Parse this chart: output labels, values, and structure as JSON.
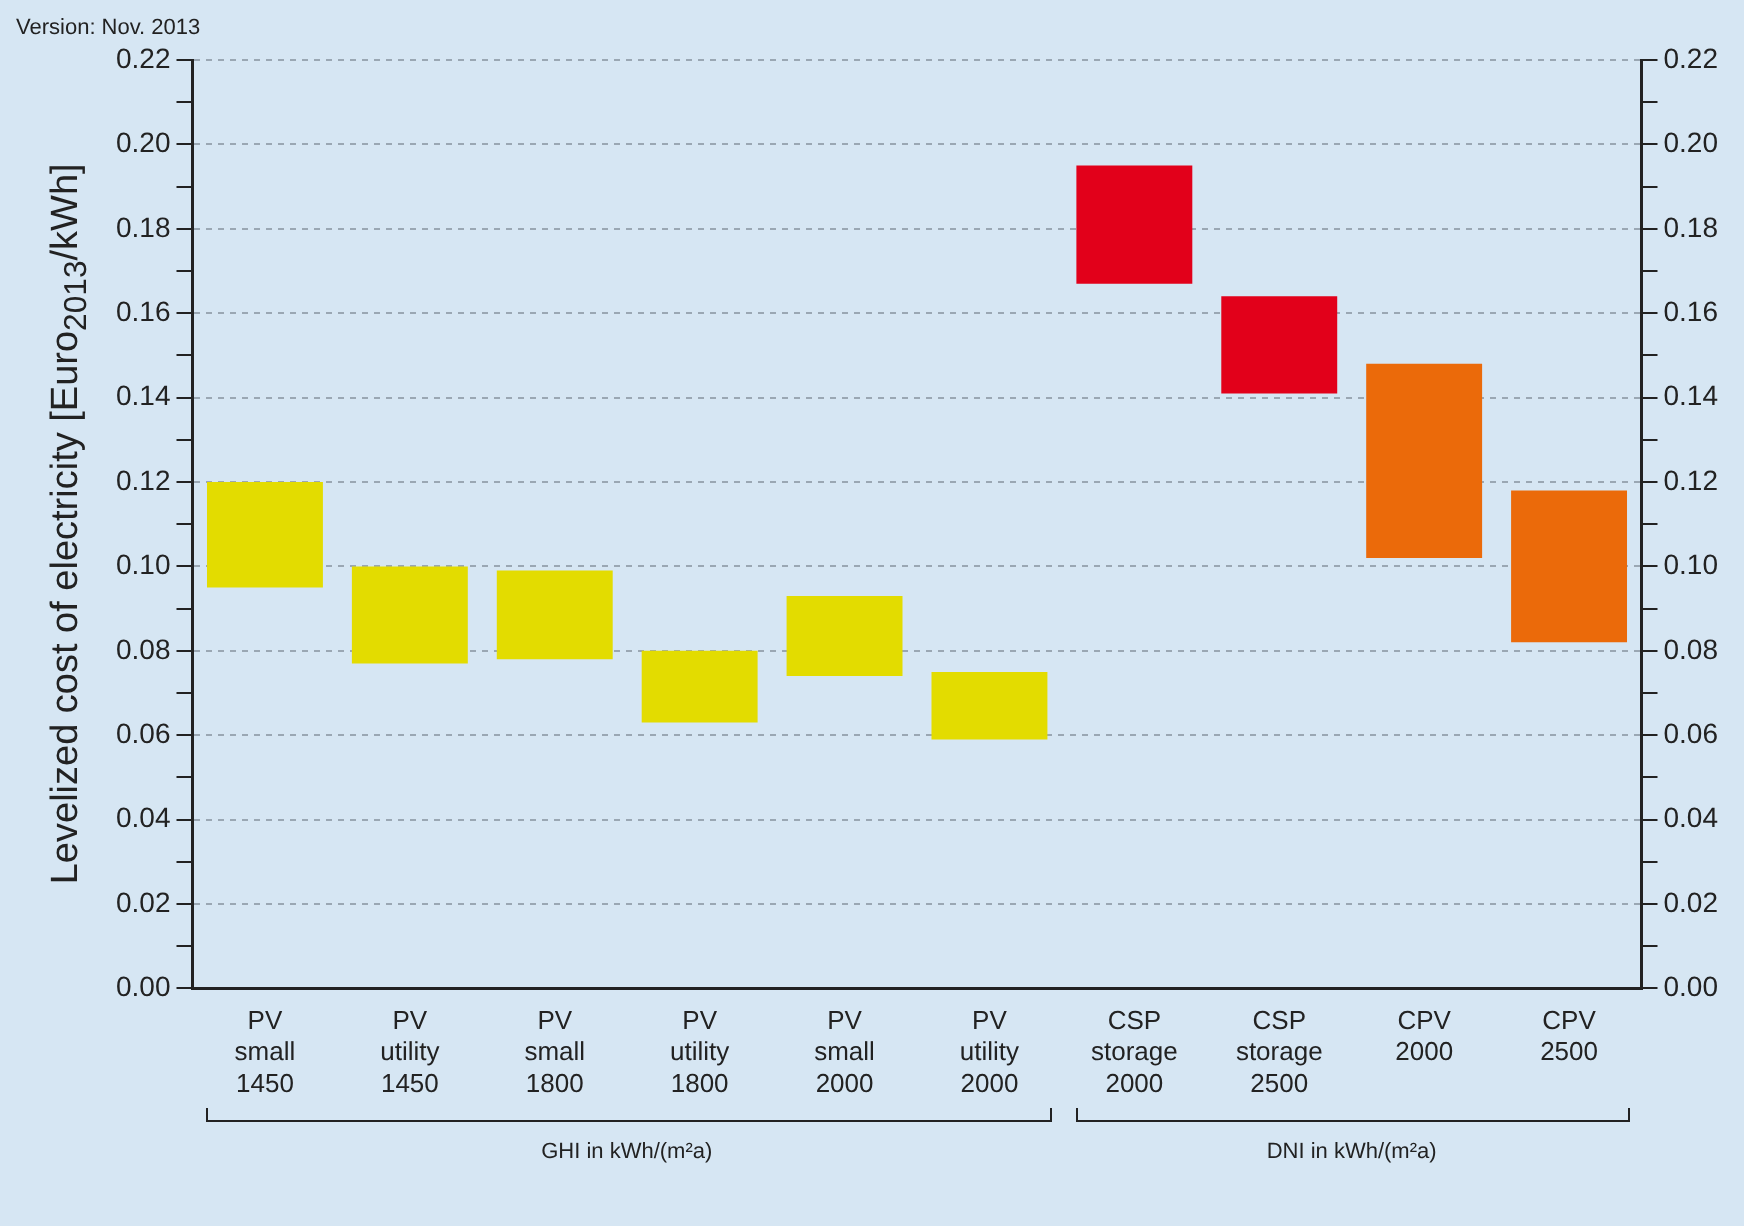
{
  "chart_data": {
    "type": "bar",
    "ylabel": "Levelized cost of electricity [Euro$_{2013}$/kWh]",
    "categories": [
      "PV small 1450",
      "PV utility 1450",
      "PV small 1800",
      "PV utility 1800",
      "PV small 2000",
      "PV utility 2000",
      "CSP storage 2000",
      "CSP storage 2500",
      "CPV 2000",
      "CPV 2500"
    ],
    "base": [
      0.095,
      0.077,
      0.078,
      0.063,
      0.074,
      0.059,
      0.167,
      0.141,
      0.102,
      0.082
    ],
    "values": [
      0.025,
      0.023,
      0.021,
      0.017,
      0.019,
      0.016,
      0.028,
      0.023,
      0.046,
      0.036
    ],
    "colors": [
      "#e3dc00",
      "#e3dc00",
      "#e3dc00",
      "#e3dc00",
      "#e3dc00",
      "#e3dc00",
      "#e2001a",
      "#e2001a",
      "#eb6a0a",
      "#eb6a0a"
    ],
    "ylim": [
      0,
      0.22
    ],
    "yticks": [
      {
        "value": 0,
        "label": "0.00"
      },
      {
        "value": 0.01,
        "label": null
      },
      {
        "value": 0.02,
        "label": "0.02"
      },
      {
        "value": 0.03,
        "label": null
      },
      {
        "value": 0.04,
        "label": "0.04"
      },
      {
        "value": 0.05,
        "label": null
      },
      {
        "value": 0.06,
        "label": "0.06"
      },
      {
        "value": 0.07,
        "label": null
      },
      {
        "value": 0.08,
        "label": "0.08"
      },
      {
        "value": 0.09,
        "label": null
      },
      {
        "value": 0.1,
        "label": "0.10"
      },
      {
        "value": 0.11,
        "label": null
      },
      {
        "value": 0.12,
        "label": "0.12"
      },
      {
        "value": 0.13,
        "label": null
      },
      {
        "value": 0.14,
        "label": "0.14"
      },
      {
        "value": 0.15,
        "label": null
      },
      {
        "value": 0.16,
        "label": "0.16"
      },
      {
        "value": 0.17,
        "label": null
      },
      {
        "value": 0.18,
        "label": "0.18"
      },
      {
        "value": 0.19,
        "label": null
      },
      {
        "value": 0.2,
        "label": "0.20"
      },
      {
        "value": 0.21,
        "label": null
      },
      {
        "value": 0.22,
        "label": "0.22"
      }
    ],
    "y2lim": [
      0,
      0.22
    ],
    "y2ticks": [
      {
        "value": 0,
        "label": "0.00"
      },
      {
        "value": 0.01,
        "label": null
      },
      {
        "value": 0.02,
        "label": "0.02"
      },
      {
        "value": 0.03,
        "label": null
      },
      {
        "value": 0.04,
        "label": "0.04"
      },
      {
        "value": 0.05,
        "label": null
      },
      {
        "value": 0.06,
        "label": "0.06"
      },
      {
        "value": 0.07,
        "label": null
      },
      {
        "value": 0.08,
        "label": "0.08"
      },
      {
        "value": 0.09,
        "label": null
      },
      {
        "value": 0.1,
        "label": "0.10"
      },
      {
        "value": 0.11,
        "label": null
      },
      {
        "value": 0.12,
        "label": "0.12"
      },
      {
        "value": 0.13,
        "label": null
      },
      {
        "value": 0.14,
        "label": "0.14"
      },
      {
        "value": 0.15,
        "label": null
      },
      {
        "value": 0.16,
        "label": "0.16"
      },
      {
        "value": 0.17,
        "label": null
      },
      {
        "value": 0.18,
        "label": "0.18"
      },
      {
        "value": 0.19,
        "label": null
      },
      {
        "value": 0.2,
        "label": "0.20"
      },
      {
        "value": 0.21,
        "label": null
      },
      {
        "value": 0.22,
        "label": "0.22"
      }
    ],
    "grid": "y",
    "legend": false,
    "annotations": [
      "Version: Nov. 2013",
      "GHI in kWh/(m²a)",
      "DNI in kWh/(m²a)"
    ]
  }
}
